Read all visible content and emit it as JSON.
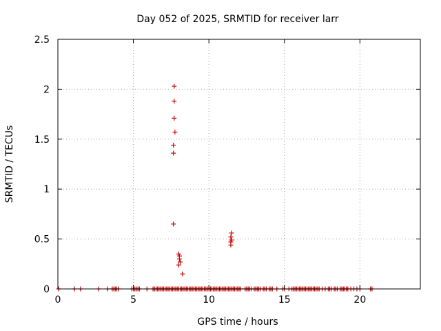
{
  "chart_data": {
    "type": "scatter",
    "title": "Day 052 of 2025, SRMTID for receiver larr",
    "xlabel": "GPS time / hours",
    "ylabel": "SRMTID / TECUs",
    "xlim": [
      0,
      24
    ],
    "ylim": [
      0,
      2.5
    ],
    "xticks": [
      0,
      5,
      10,
      15,
      20
    ],
    "yticks": [
      0,
      0.5,
      1,
      1.5,
      2,
      2.5
    ],
    "xtick_labels": [
      "0",
      "5",
      "10",
      "15",
      "20"
    ],
    "ytick_labels": [
      "0",
      "0.5",
      "1",
      "1.5",
      "2",
      "2.5"
    ],
    "grid": true,
    "marker": "+",
    "color": "#cc0000",
    "series": [
      {
        "points": [
          [
            7.7,
            2.03
          ],
          [
            7.7,
            1.88
          ],
          [
            7.7,
            1.71
          ],
          [
            7.75,
            1.57
          ],
          [
            7.65,
            1.44
          ],
          [
            7.65,
            1.36
          ],
          [
            7.65,
            0.65
          ],
          [
            8.0,
            0.35
          ],
          [
            8.05,
            0.33
          ],
          [
            8.05,
            0.3
          ],
          [
            8.1,
            0.27
          ],
          [
            8.0,
            0.24
          ],
          [
            8.25,
            0.15
          ],
          [
            11.5,
            0.56
          ],
          [
            11.45,
            0.52
          ],
          [
            11.5,
            0.49
          ],
          [
            11.45,
            0.47
          ],
          [
            11.45,
            0.44
          ],
          [
            0.05,
            0
          ],
          [
            1.1,
            0
          ],
          [
            1.5,
            0
          ],
          [
            2.7,
            0
          ],
          [
            3.3,
            0
          ],
          [
            3.6,
            0
          ],
          [
            3.7,
            0
          ],
          [
            3.8,
            0
          ],
          [
            3.9,
            0
          ],
          [
            4.0,
            0
          ],
          [
            4.9,
            0
          ],
          [
            5.0,
            0
          ],
          [
            5.1,
            0
          ],
          [
            5.2,
            0
          ],
          [
            5.3,
            0
          ],
          [
            5.4,
            0
          ],
          [
            5.9,
            0
          ],
          [
            6.3,
            0
          ],
          [
            6.4,
            0
          ],
          [
            6.5,
            0
          ],
          [
            6.6,
            0
          ],
          [
            6.7,
            0
          ],
          [
            6.8,
            0
          ],
          [
            6.9,
            0
          ],
          [
            7.0,
            0
          ],
          [
            7.1,
            0
          ],
          [
            7.2,
            0
          ],
          [
            7.3,
            0
          ],
          [
            7.4,
            0
          ],
          [
            7.5,
            0
          ],
          [
            7.6,
            0
          ],
          [
            7.7,
            0
          ],
          [
            7.8,
            0
          ],
          [
            7.9,
            0
          ],
          [
            8.0,
            0
          ],
          [
            8.1,
            0
          ],
          [
            8.2,
            0
          ],
          [
            8.3,
            0
          ],
          [
            8.4,
            0
          ],
          [
            8.5,
            0
          ],
          [
            8.6,
            0
          ],
          [
            8.7,
            0
          ],
          [
            8.8,
            0
          ],
          [
            8.9,
            0
          ],
          [
            9.0,
            0
          ],
          [
            9.1,
            0
          ],
          [
            9.2,
            0
          ],
          [
            9.3,
            0
          ],
          [
            9.4,
            0
          ],
          [
            9.5,
            0
          ],
          [
            9.6,
            0
          ],
          [
            9.7,
            0
          ],
          [
            9.8,
            0
          ],
          [
            9.9,
            0
          ],
          [
            10.0,
            0
          ],
          [
            10.1,
            0
          ],
          [
            10.2,
            0
          ],
          [
            10.3,
            0
          ],
          [
            10.4,
            0
          ],
          [
            10.5,
            0
          ],
          [
            10.6,
            0
          ],
          [
            10.7,
            0
          ],
          [
            10.8,
            0
          ],
          [
            10.9,
            0
          ],
          [
            11.0,
            0
          ],
          [
            11.1,
            0
          ],
          [
            11.2,
            0
          ],
          [
            11.3,
            0
          ],
          [
            11.4,
            0
          ],
          [
            11.5,
            0
          ],
          [
            11.6,
            0
          ],
          [
            11.7,
            0
          ],
          [
            11.8,
            0
          ],
          [
            11.9,
            0
          ],
          [
            12.0,
            0
          ],
          [
            12.1,
            0
          ],
          [
            12.4,
            0
          ],
          [
            12.5,
            0
          ],
          [
            12.6,
            0
          ],
          [
            12.7,
            0
          ],
          [
            12.8,
            0
          ],
          [
            13.0,
            0
          ],
          [
            13.1,
            0
          ],
          [
            13.2,
            0
          ],
          [
            13.3,
            0
          ],
          [
            13.4,
            0
          ],
          [
            13.6,
            0
          ],
          [
            13.7,
            0
          ],
          [
            13.8,
            0
          ],
          [
            14.0,
            0
          ],
          [
            14.1,
            0
          ],
          [
            14.2,
            0
          ],
          [
            14.5,
            0
          ],
          [
            14.9,
            0
          ],
          [
            15.0,
            0
          ],
          [
            15.3,
            0
          ],
          [
            15.5,
            0
          ],
          [
            15.6,
            0
          ],
          [
            15.7,
            0
          ],
          [
            15.8,
            0
          ],
          [
            15.9,
            0
          ],
          [
            16.0,
            0
          ],
          [
            16.1,
            0
          ],
          [
            16.2,
            0
          ],
          [
            16.3,
            0
          ],
          [
            16.4,
            0
          ],
          [
            16.5,
            0
          ],
          [
            16.6,
            0
          ],
          [
            16.7,
            0
          ],
          [
            16.8,
            0
          ],
          [
            16.9,
            0
          ],
          [
            17.0,
            0
          ],
          [
            17.1,
            0
          ],
          [
            17.2,
            0
          ],
          [
            17.3,
            0
          ],
          [
            17.5,
            0
          ],
          [
            17.7,
            0
          ],
          [
            17.9,
            0
          ],
          [
            18.0,
            0
          ],
          [
            18.1,
            0
          ],
          [
            18.3,
            0
          ],
          [
            18.4,
            0
          ],
          [
            18.5,
            0
          ],
          [
            18.7,
            0
          ],
          [
            18.8,
            0
          ],
          [
            18.9,
            0
          ],
          [
            19.0,
            0
          ],
          [
            19.1,
            0
          ],
          [
            19.2,
            0
          ],
          [
            19.4,
            0
          ],
          [
            19.6,
            0
          ],
          [
            19.8,
            0
          ],
          [
            20.0,
            0
          ],
          [
            20.7,
            0
          ],
          [
            20.8,
            0
          ]
        ]
      }
    ]
  }
}
